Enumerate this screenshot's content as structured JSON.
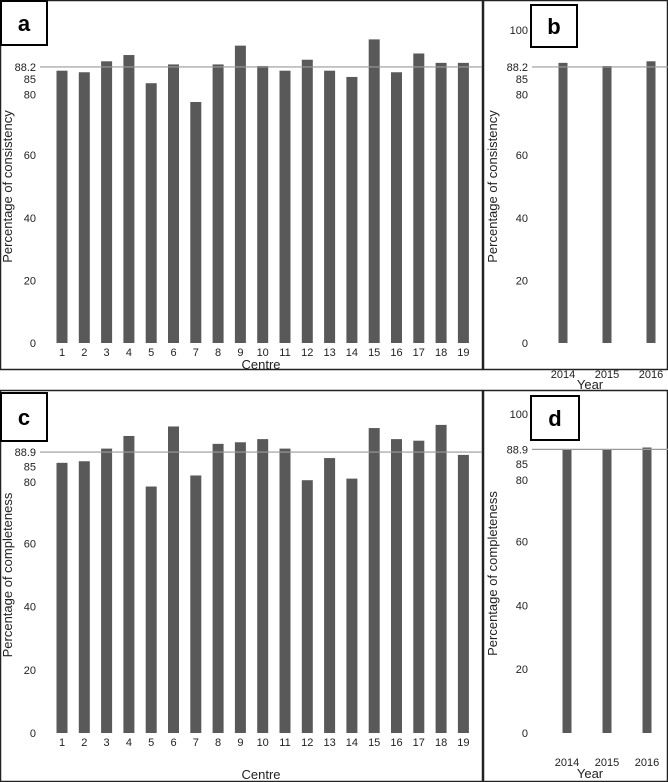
{
  "chart_data": [
    {
      "type": "bar",
      "panel": "a",
      "xlabel": "Centre",
      "ylabel": "Percentage of consistency",
      "categories": [
        "1",
        "2",
        "3",
        "4",
        "5",
        "6",
        "7",
        "8",
        "9",
        "10",
        "11",
        "12",
        "13",
        "14",
        "15",
        "16",
        "17",
        "18",
        "19"
      ],
      "values": [
        87,
        86.5,
        90,
        92,
        83,
        89,
        77,
        89,
        95,
        88.5,
        87,
        90.5,
        87,
        85,
        97,
        86.5,
        92.5,
        89.5,
        89.5
      ],
      "reference_line": {
        "value": 88.2,
        "label": "88.2"
      },
      "yticks": [
        "0",
        "20",
        "40",
        "60",
        "80",
        "85",
        "88.2",
        "100"
      ],
      "ylim": [
        0,
        104
      ],
      "color": "#595959"
    },
    {
      "type": "bar",
      "panel": "b",
      "xlabel": "Year",
      "ylabel": "Percentage of consistency",
      "categories": [
        "2014",
        "2015",
        "2016"
      ],
      "values": [
        89.5,
        88.5,
        90
      ],
      "reference_line": {
        "value": 88.2,
        "label": "88.2"
      },
      "yticks": [
        "0",
        "20",
        "40",
        "60",
        "80",
        "85",
        "88.2",
        "100"
      ],
      "ylim": [
        0,
        104
      ],
      "color": "#595959"
    },
    {
      "type": "bar",
      "panel": "c",
      "xlabel": "Centre",
      "ylabel": "Percentage of completeness",
      "categories": [
        "1",
        "2",
        "3",
        "4",
        "5",
        "6",
        "7",
        "8",
        "9",
        "10",
        "11",
        "12",
        "13",
        "14",
        "15",
        "16",
        "17",
        "18",
        "19"
      ],
      "values": [
        85.5,
        86,
        90,
        94,
        78,
        97,
        81.5,
        91.5,
        92,
        93,
        90,
        80,
        87,
        80.5,
        96.5,
        93,
        92.5,
        97.5,
        88
      ],
      "reference_line": {
        "value": 88.9,
        "label": "88.9"
      },
      "yticks": [
        "0",
        "20",
        "40",
        "60",
        "80",
        "85",
        "88.9",
        "100"
      ],
      "ylim": [
        0,
        104
      ],
      "color": "#595959"
    },
    {
      "type": "bar",
      "panel": "d",
      "xlabel": "Year",
      "ylabel": "Percentage of completeness",
      "categories": [
        "2014",
        "2015",
        "2016"
      ],
      "values": [
        89,
        89,
        89.5
      ],
      "reference_line": {
        "value": 88.9,
        "label": "88.9"
      },
      "yticks": [
        "0",
        "20",
        "40",
        "60",
        "80",
        "85",
        "88.9",
        "100"
      ],
      "ylim": [
        0,
        104
      ],
      "color": "#595959"
    }
  ]
}
